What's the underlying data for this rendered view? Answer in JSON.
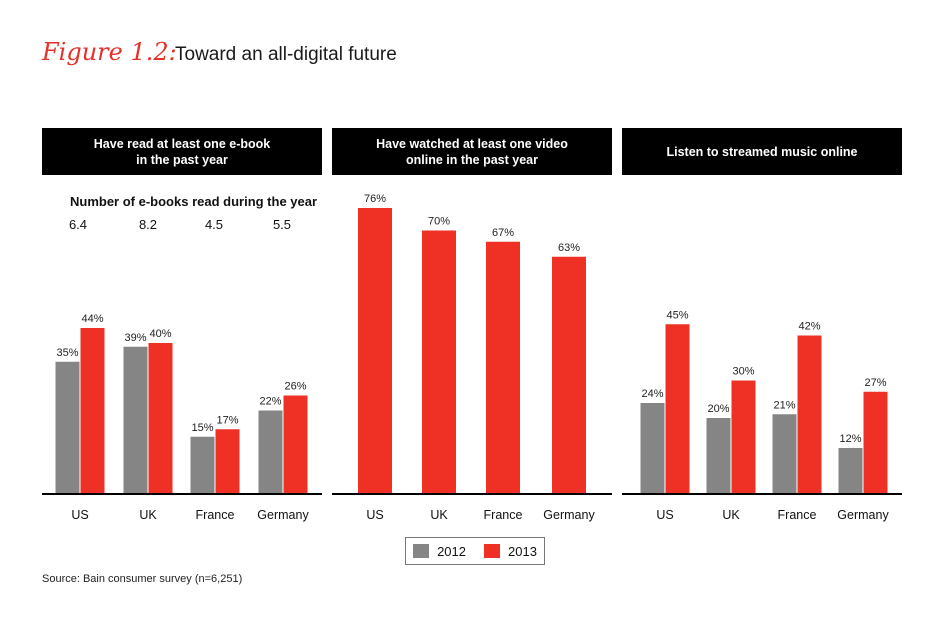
{
  "figure": {
    "label": "Figure 1.2:",
    "title": "Toward an all-digital future",
    "source": "Source: Bain consumer survey (n=6,251)"
  },
  "colors": {
    "s2012": "#858585",
    "s2013": "#ee3124",
    "axis": "#000000"
  },
  "ebooks": {
    "subtitle": "Number of e-books read during the year",
    "values": [
      "6.4",
      "8.2",
      "4.5",
      "5.5"
    ]
  },
  "legend": [
    "2012",
    "2013"
  ],
  "chart_data": [
    {
      "type": "bar",
      "title": "Have read at least one e-book\nin the past year",
      "categories": [
        "US",
        "UK",
        "France",
        "Germany"
      ],
      "series": [
        {
          "name": "2012",
          "values": [
            35,
            39,
            15,
            22
          ]
        },
        {
          "name": "2013",
          "values": [
            44,
            40,
            17,
            26
          ]
        }
      ],
      "ylim": [
        0,
        100
      ]
    },
    {
      "type": "bar",
      "title": "Have watched at least one video\nonline in the past year",
      "categories": [
        "US",
        "UK",
        "France",
        "Germany"
      ],
      "series": [
        {
          "name": "2013",
          "values": [
            76,
            70,
            67,
            63
          ]
        }
      ],
      "ylim": [
        0,
        100
      ]
    },
    {
      "type": "bar",
      "title": "Listen to streamed music online",
      "categories": [
        "US",
        "UK",
        "France",
        "Germany"
      ],
      "series": [
        {
          "name": "2012",
          "values": [
            24,
            20,
            21,
            12
          ]
        },
        {
          "name": "2013",
          "values": [
            45,
            30,
            42,
            27
          ]
        }
      ],
      "ylim": [
        0,
        100
      ]
    }
  ]
}
